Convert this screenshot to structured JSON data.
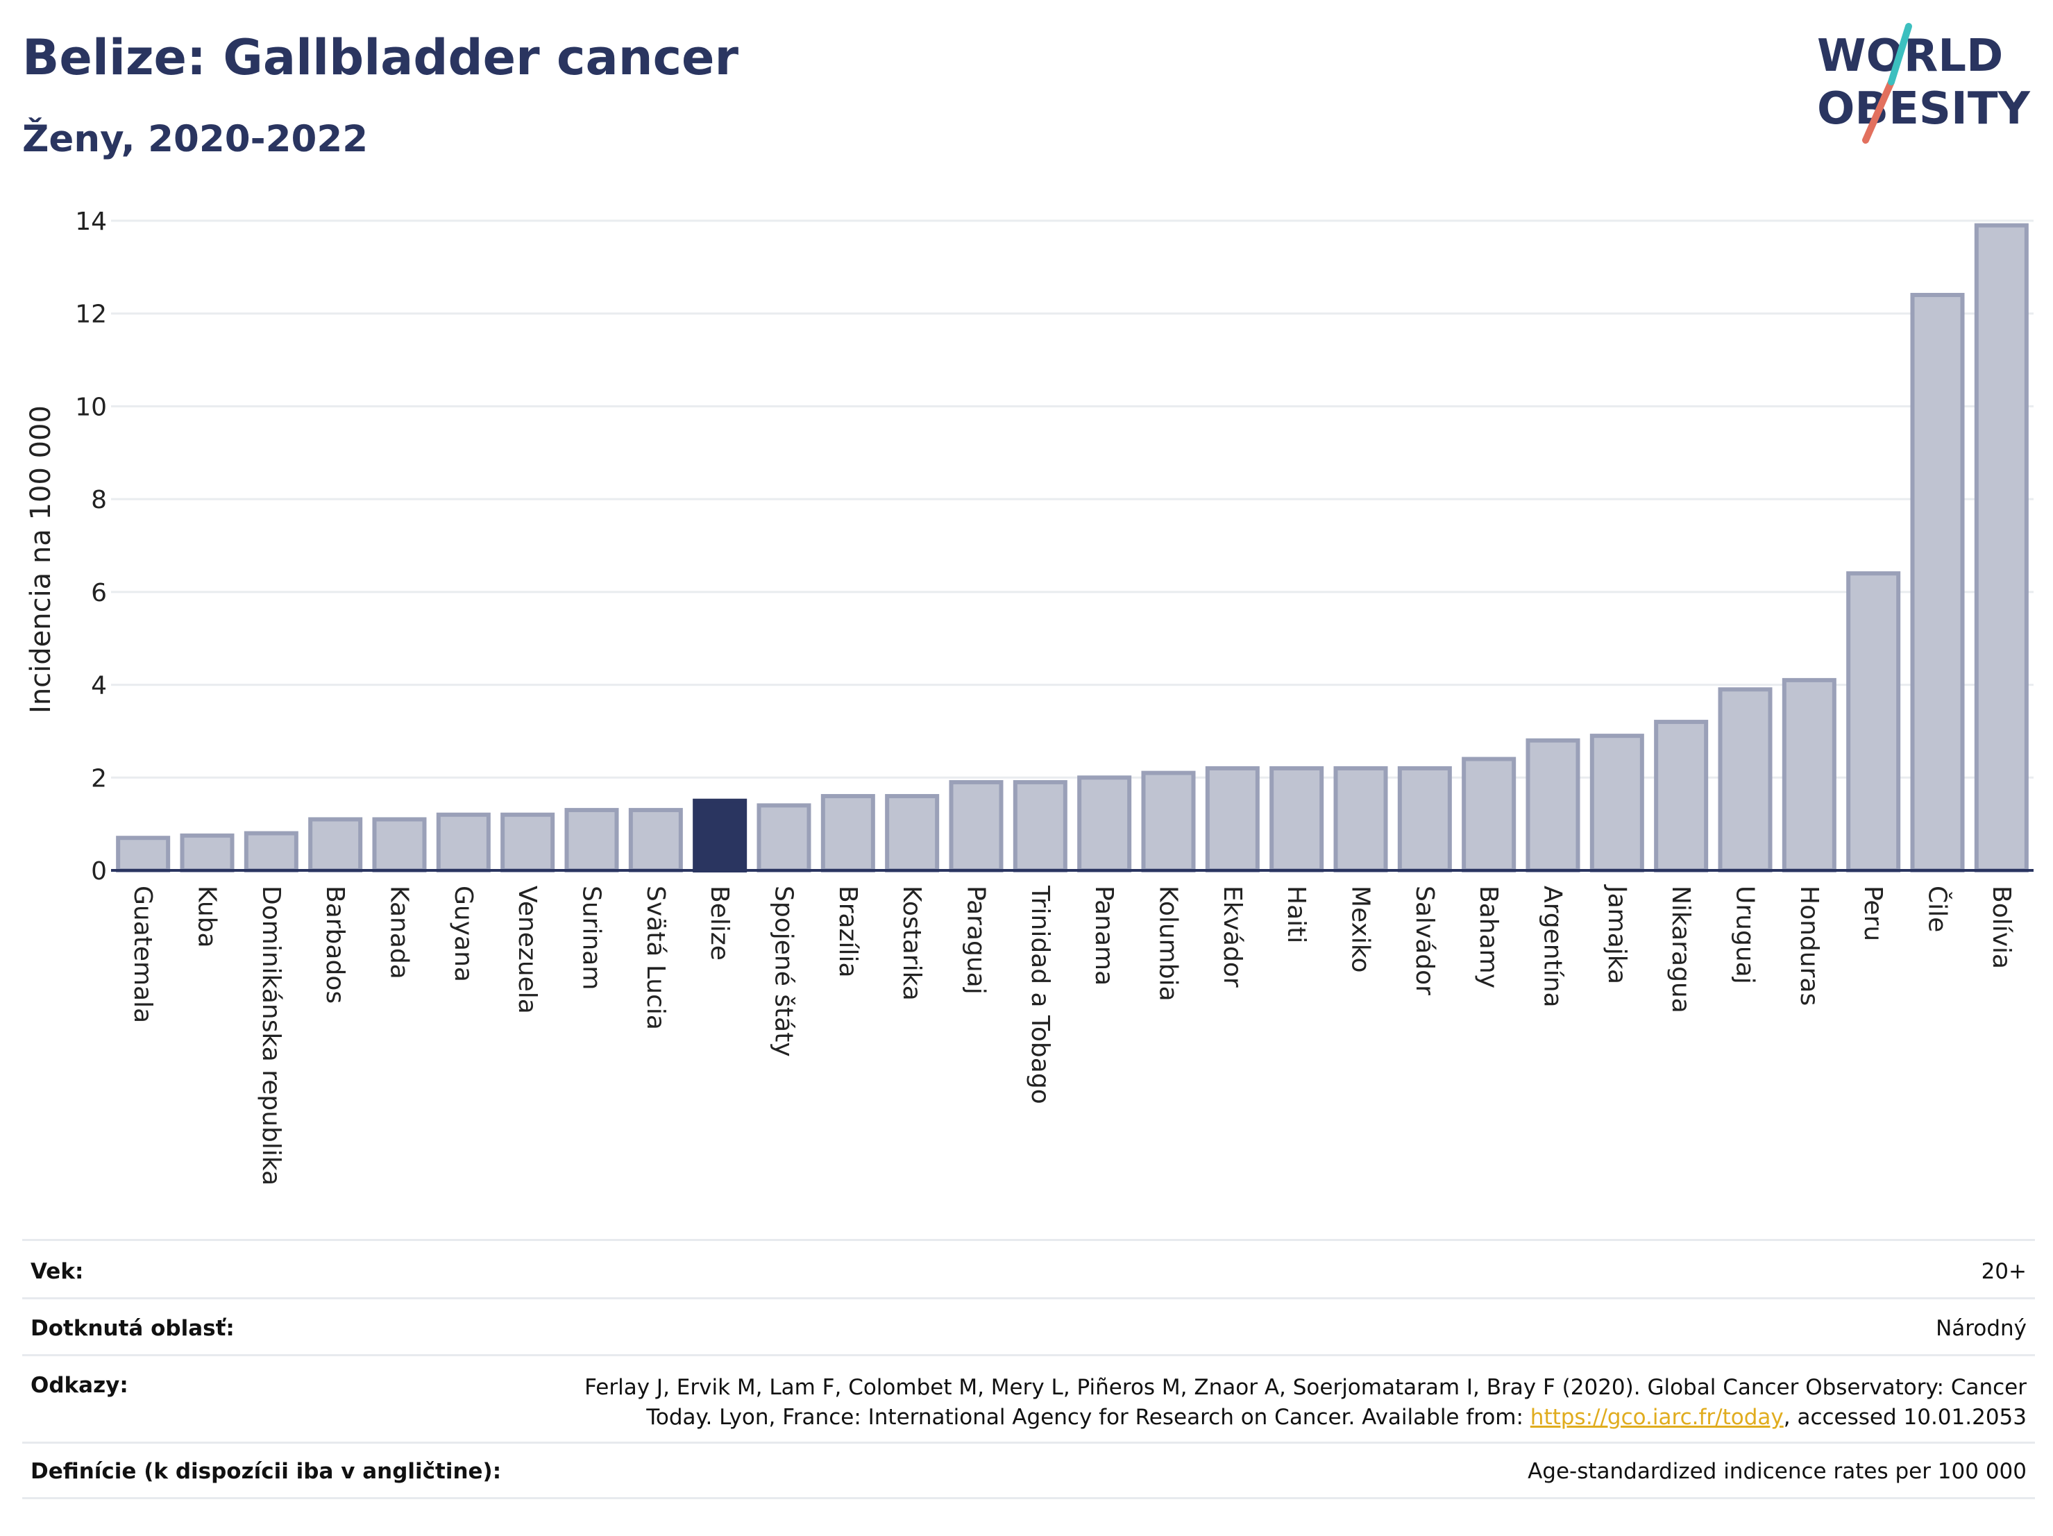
{
  "header": {
    "title": "Belize: Gallbladder cancer",
    "subtitle": "Ženy, 2020-2022"
  },
  "logo": {
    "line1": "WORLD",
    "line2": "OBESITY",
    "colors": {
      "text": "#2a3560",
      "slash_red": "#e2705e",
      "slash_teal": "#3cbfbf"
    }
  },
  "chart_data": {
    "type": "bar",
    "ylabel": "Incidencia na 100 000",
    "ylim": [
      0,
      14
    ],
    "yticks": [
      0,
      2,
      4,
      6,
      8,
      10,
      12,
      14
    ],
    "grid": true,
    "highlight": "Belize",
    "colors": {
      "bar": "#bfc3d1",
      "bar_edge": "#9aa0b8",
      "highlight": "#2a3560",
      "grid": "#e9ecef"
    },
    "categories": [
      "Guatemala",
      "Kuba",
      "Dominikánska republika",
      "Barbados",
      "Kanada",
      "Guyana",
      "Venezuela",
      "Surinam",
      "Svätá Lucia",
      "Belize",
      "Spojené štáty",
      "Brazília",
      "Kostarika",
      "Paraguaj",
      "Trinidad a Tobago",
      "Panama",
      "Kolumbia",
      "Ekvádor",
      "Haiti",
      "Mexiko",
      "Salvádor",
      "Bahamy",
      "Argentína",
      "Jamajka",
      "Nikaragua",
      "Uruguaj",
      "Honduras",
      "Peru",
      "Čile",
      "Bolívia"
    ],
    "values": [
      0.7,
      0.75,
      0.8,
      1.1,
      1.1,
      1.2,
      1.2,
      1.3,
      1.3,
      1.5,
      1.4,
      1.6,
      1.6,
      1.9,
      1.9,
      2.0,
      2.1,
      2.2,
      2.2,
      2.2,
      2.2,
      2.4,
      2.8,
      2.9,
      3.2,
      3.9,
      4.1,
      6.4,
      12.4,
      13.9
    ]
  },
  "info_table": [
    {
      "key": "Vek:",
      "value": "20+"
    },
    {
      "key": "Dotknutá oblasť:",
      "value": "Národný"
    },
    {
      "key": "Odkazy:",
      "value_line1": "Ferlay J, Ervik M, Lam F, Colombet M, Mery L, Piñeros M, Znaor A, Soerjomataram I, Bray F (2020). Global Cancer Observatory: Cancer",
      "value_line2_pre": "Today. Lyon, France: International Agency for Research on Cancer. Available from: ",
      "link": "https://gco.iarc.fr/today",
      "value_line2_post": ", accessed 10.01.2053"
    },
    {
      "key": "Definície (k dispozícii iba v angličtine):",
      "value": "Age-standardized indicence rates per 100 000"
    }
  ]
}
